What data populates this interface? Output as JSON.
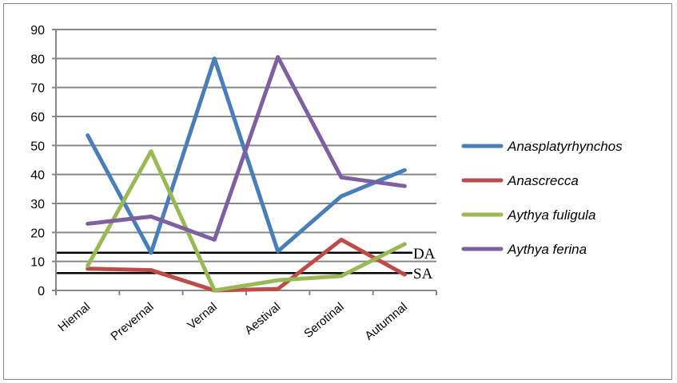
{
  "chart_data": {
    "type": "line",
    "categories": [
      "Hiemal",
      "Prevernal",
      "Vernal",
      "Aestival",
      "Serotinal",
      "Autumnal"
    ],
    "ylim": [
      0,
      90
    ],
    "yticks": [
      0,
      10,
      20,
      30,
      40,
      50,
      60,
      70,
      80,
      90
    ],
    "grid": true,
    "legend_position": "right",
    "series": [
      {
        "name": "Anasplatyrhynchos",
        "color": "#4a7ebb",
        "values": [
          53.5,
          13,
          80,
          13.5,
          32.5,
          41.5
        ]
      },
      {
        "name": "Anascrecca",
        "color": "#be4b48",
        "values": [
          7.5,
          7,
          0,
          0.5,
          17.5,
          5.5
        ]
      },
      {
        "name": "Aythya fuligula",
        "color": "#98b954",
        "values": [
          8.5,
          48,
          0,
          3.5,
          5,
          16
        ]
      },
      {
        "name": "Aythya ferina",
        "color": "#7d60a0",
        "values": [
          23,
          25.5,
          17.5,
          80.5,
          39,
          36
        ]
      }
    ],
    "reference_lines": [
      {
        "label": "DA",
        "value": 13,
        "color": "#000000"
      },
      {
        "label": "SA",
        "value": 6,
        "color": "#000000"
      }
    ]
  }
}
